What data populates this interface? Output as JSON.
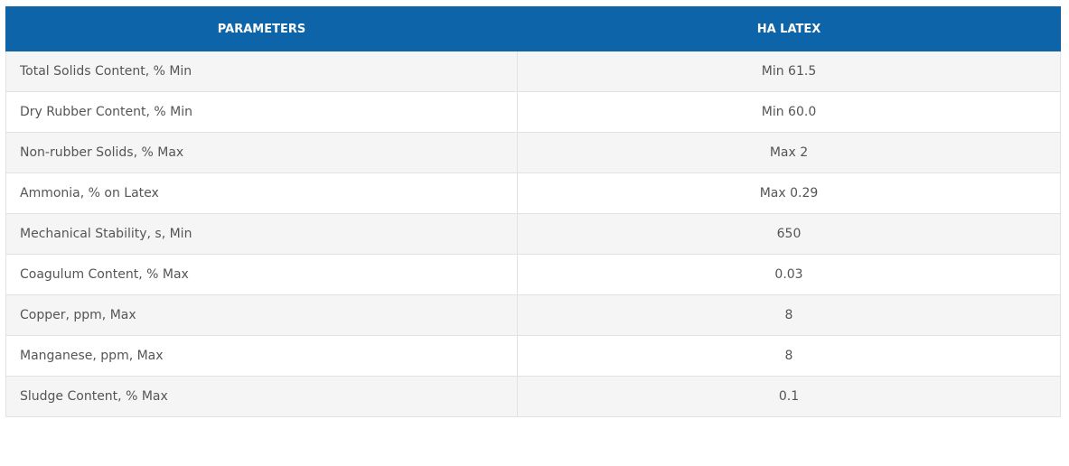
{
  "table": {
    "header": [
      "PARAMETERS",
      "HA LATEX"
    ],
    "rows": [
      [
        "Total Solids Content, % Min",
        "Min 61.5"
      ],
      [
        "Dry Rubber Content, % Min",
        "Min 60.0"
      ],
      [
        "Non-rubber Solids, % Max",
        "Max 2"
      ],
      [
        "Ammonia, % on Latex",
        "Max 0.29"
      ],
      [
        "Mechanical Stability, s, Min",
        "650"
      ],
      [
        "Coagulum Content, % Max",
        "0.03"
      ],
      [
        "Copper, ppm, Max",
        "8"
      ],
      [
        "Manganese, ppm, Max",
        "8"
      ],
      [
        "Sludge Content, % Max",
        "0.1"
      ]
    ]
  }
}
